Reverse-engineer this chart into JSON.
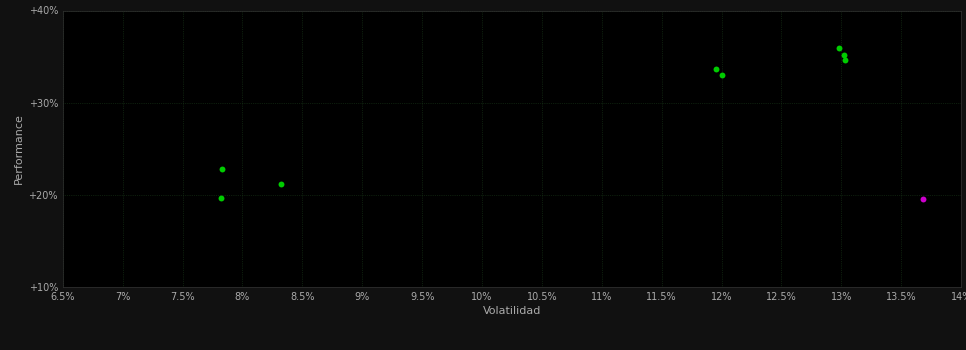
{
  "background_color": "#111111",
  "plot_bg_color": "#000000",
  "grid_color": "#1a3a1a",
  "grid_style": ":",
  "xlabel": "Volatilidad",
  "ylabel": "Performance",
  "xlabel_color": "#aaaaaa",
  "ylabel_color": "#aaaaaa",
  "tick_color": "#aaaaaa",
  "xlim": [
    0.065,
    0.14
  ],
  "ylim": [
    0.1,
    0.4
  ],
  "xticks": [
    0.065,
    0.07,
    0.075,
    0.08,
    0.085,
    0.09,
    0.095,
    0.1,
    0.105,
    0.11,
    0.115,
    0.12,
    0.125,
    0.13,
    0.135,
    0.14
  ],
  "yticks": [
    0.1,
    0.2,
    0.3,
    0.4
  ],
  "ytick_labels": [
    "+10%",
    "+20%",
    "+30%",
    "+40%"
  ],
  "xtick_labels": [
    "6.5%",
    "7%",
    "7.5%",
    "8%",
    "8.5%",
    "9%",
    "9.5%",
    "10%",
    "10.5%",
    "11%",
    "11.5%",
    "12%",
    "12.5%",
    "13%",
    "13.5%",
    "14%"
  ],
  "green_points": [
    [
      0.0783,
      0.228
    ],
    [
      0.0782,
      0.197
    ],
    [
      0.0832,
      0.212
    ],
    [
      0.1195,
      0.336
    ],
    [
      0.12,
      0.33
    ],
    [
      0.1298,
      0.359
    ],
    [
      0.1302,
      0.352
    ],
    [
      0.1303,
      0.346
    ]
  ],
  "magenta_points": [
    [
      0.1368,
      0.196
    ]
  ],
  "green_color": "#00cc00",
  "magenta_color": "#cc00cc",
  "point_size": 18
}
